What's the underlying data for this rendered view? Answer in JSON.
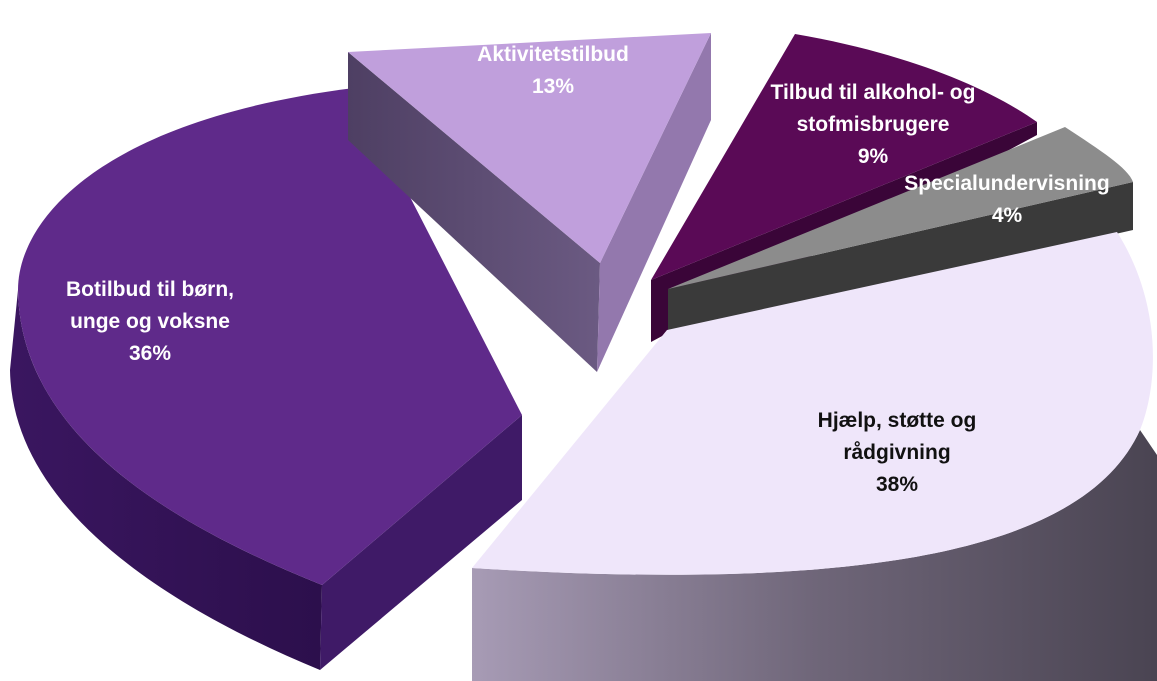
{
  "chart_data": {
    "type": "pie",
    "style": "3d-exploded",
    "slices": [
      {
        "label_lines": [
          "Botilbud til børn,",
          "unge og voksne"
        ],
        "value": 36,
        "value_label": "36%",
        "color": "#5f2a8a",
        "label_color": "#ffffff"
      },
      {
        "label_lines": [
          "Aktivitetstilbud"
        ],
        "value": 13,
        "value_label": "13%",
        "color": "#c09fdc",
        "label_color": "#ffffff"
      },
      {
        "label_lines": [
          "Tilbud til alkohol- og",
          "stofmisbrugere"
        ],
        "value": 9,
        "value_label": "9%",
        "color": "#5a0a56",
        "label_color": "#ffffff"
      },
      {
        "label_lines": [
          "Specialundervisning"
        ],
        "value": 4,
        "value_label": "4%",
        "color": "#8c8c8c",
        "label_color": "#ffffff"
      },
      {
        "label_lines": [
          "Hjælp, støtte og",
          "rådgivning"
        ],
        "value": 38,
        "value_label": "38%",
        "color": "#efe6fa",
        "label_color": "#111111"
      }
    ]
  }
}
